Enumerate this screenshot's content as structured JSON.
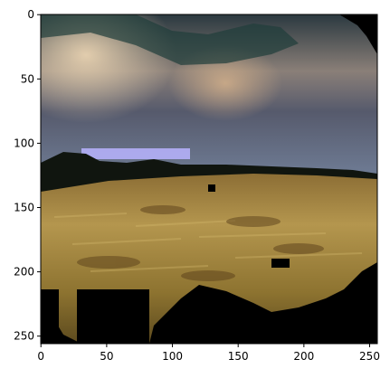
{
  "figure": {
    "image_description_icon": "landscape-field-sky-image",
    "x_ticks": [
      "0",
      "50",
      "100",
      "150",
      "200",
      "250"
    ],
    "y_ticks": [
      "0",
      "50",
      "100",
      "150",
      "200",
      "250"
    ],
    "colors": {
      "sky_dark": "#3a3f52",
      "sky_light": "#c9b79a",
      "grass": "#a98c3c",
      "mask": "#000000",
      "frame": "#000000"
    }
  }
}
